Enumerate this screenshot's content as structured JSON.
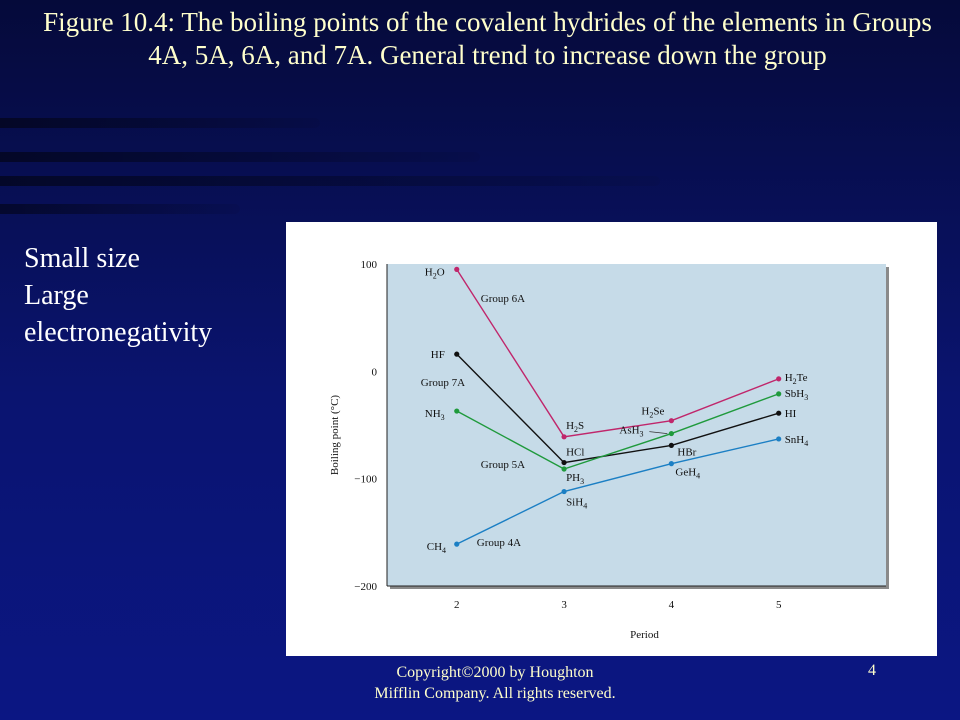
{
  "slide": {
    "title": "Figure 10.4: The boiling points of the covalent hydrides of the elements in Groups 4A, 5A, 6A, and 7A. General trend to increase down the group",
    "side_note_lines": [
      "Small size",
      "Large",
      "electronegativity"
    ],
    "footer_line1": "Copyright©2000 by Houghton",
    "footer_line2": "Mifflin Company. All rights reserved.",
    "page_number": "4"
  },
  "chart_data": {
    "type": "line",
    "xlabel": "Period",
    "ylabel": "Boiling point (°C)",
    "x": [
      2,
      3,
      4,
      5
    ],
    "xlim": [
      1.35,
      6.0
    ],
    "ylim": [
      -200,
      100
    ],
    "yticks": [
      "100",
      "0",
      "−100",
      "−200"
    ],
    "xticks": [
      "2",
      "3",
      "4",
      "5"
    ],
    "grid": false,
    "series": [
      {
        "name": "Group 6A",
        "color": "#c0266b",
        "values": [
          95,
          -61,
          -46,
          -7
        ],
        "point_labels": [
          {
            "b": "H",
            "s": "2",
            "e": "O"
          },
          {
            "b": "H",
            "s": "2",
            "e": "S"
          },
          {
            "b": "H",
            "s": "2",
            "e": "Se"
          },
          {
            "b": "H",
            "s": "2",
            "e": "Te"
          }
        ]
      },
      {
        "name": "Group 7A",
        "color": "#111111",
        "values": [
          16,
          -85,
          -69,
          -39
        ],
        "point_labels": [
          {
            "b": "HF",
            "s": "",
            "e": ""
          },
          {
            "b": "HCl",
            "s": "",
            "e": ""
          },
          {
            "b": "HBr",
            "s": "",
            "e": ""
          },
          {
            "b": "HI",
            "s": "",
            "e": ""
          }
        ]
      },
      {
        "name": "Group 5A",
        "color": "#1f9a3c",
        "values": [
          -37,
          -91,
          -58,
          -21
        ],
        "point_labels": [
          {
            "b": "NH",
            "s": "3",
            "e": ""
          },
          {
            "b": "PH",
            "s": "3",
            "e": ""
          },
          {
            "b": "AsH",
            "s": "3",
            "e": ""
          },
          {
            "b": "SbH",
            "s": "3",
            "e": ""
          }
        ]
      },
      {
        "name": "Group 4A",
        "color": "#1b7fc4",
        "values": [
          -161,
          -112,
          -86,
          -63
        ],
        "point_labels": [
          {
            "b": "CH",
            "s": "4",
            "e": ""
          },
          {
            "b": "SiH",
            "s": "4",
            "e": ""
          },
          {
            "b": "GeH",
            "s": "4",
            "e": ""
          },
          {
            "b": "SnH",
            "s": "4",
            "e": ""
          }
        ]
      }
    ],
    "colors": {
      "plot_bg": "#c6dbe8",
      "title": "#ffffcc"
    }
  }
}
